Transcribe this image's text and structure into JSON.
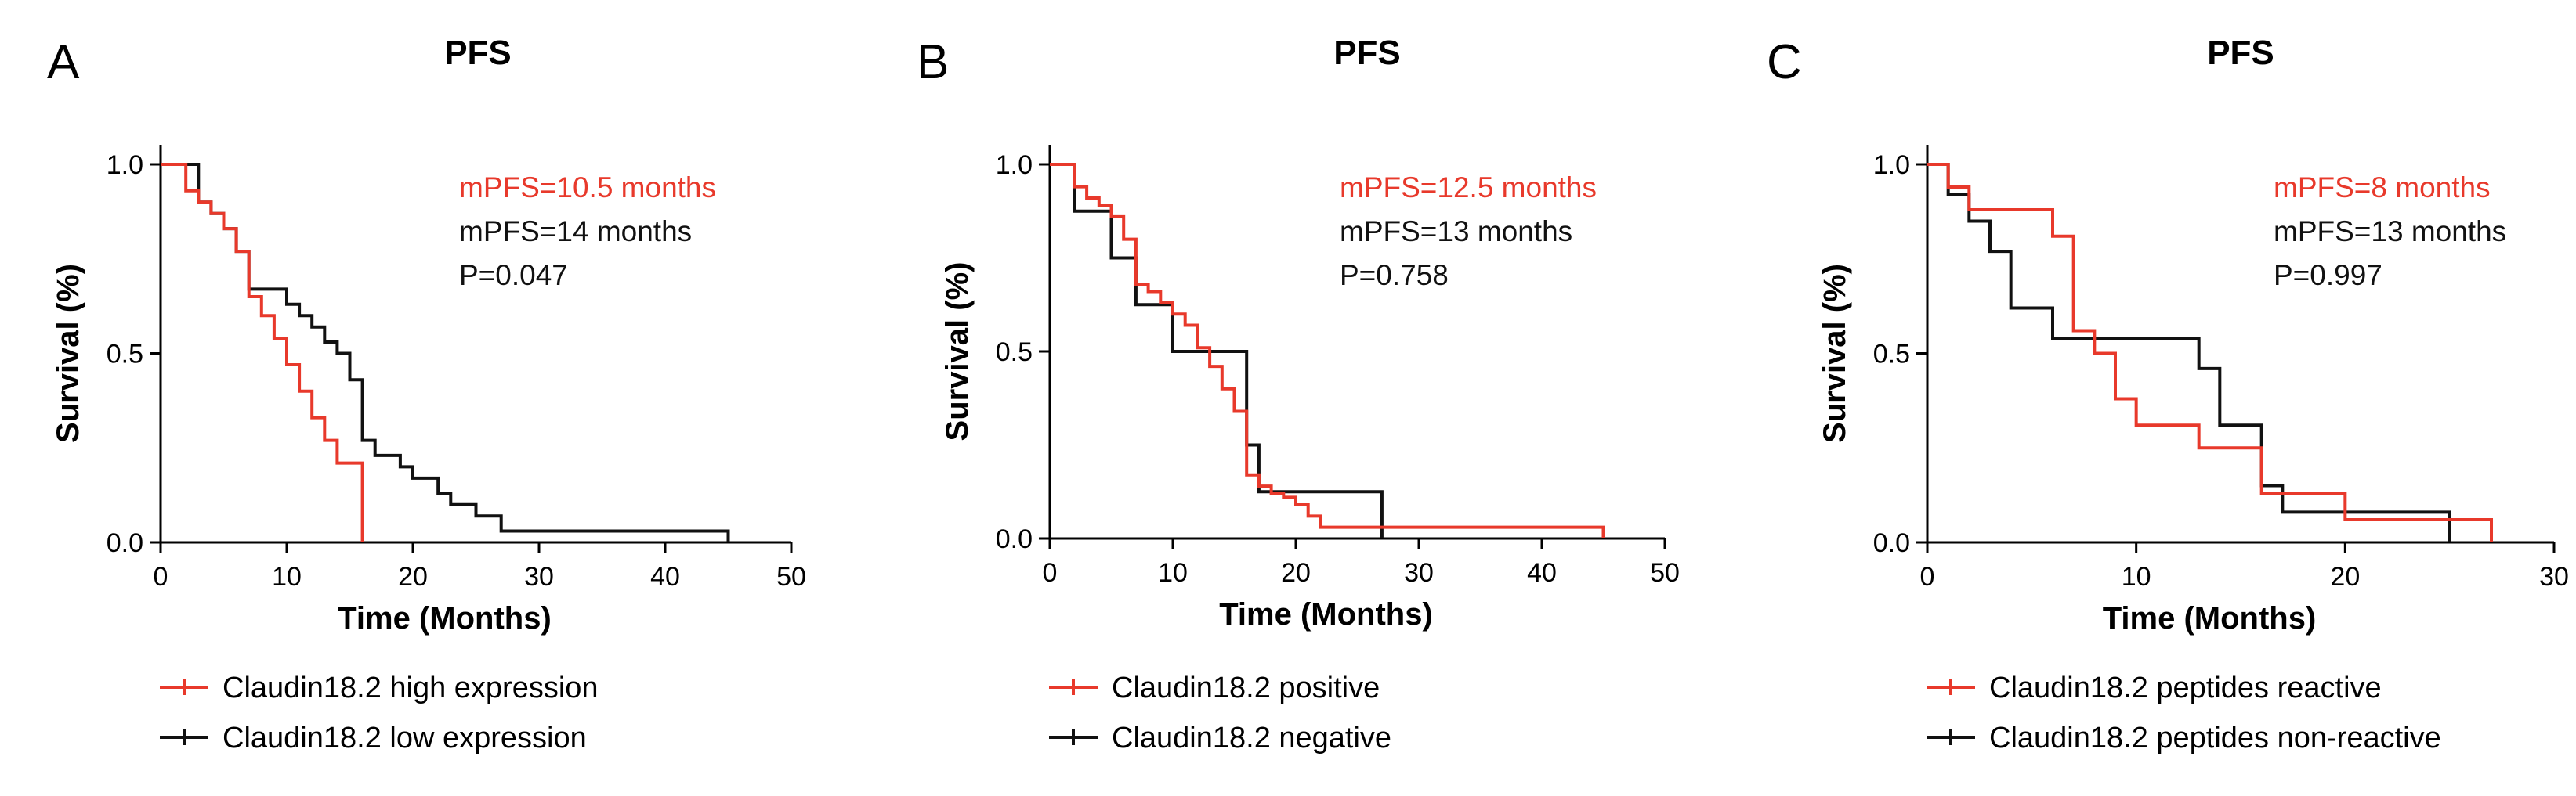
{
  "colors": {
    "red": "#e8392b",
    "black": "#111111"
  },
  "chart_data": [
    {
      "type": "line",
      "panel": "A",
      "title": "PFS",
      "xlabel": "Time (Months)",
      "ylabel": "Survival (%)",
      "xlim": [
        0,
        50
      ],
      "ylim": [
        0,
        1.0
      ],
      "xticks": [
        0,
        10,
        20,
        30,
        40,
        50
      ],
      "yticks": [
        0.0,
        0.5,
        1.0
      ],
      "annotations": [
        {
          "text": "mPFS=10.5 months",
          "color": "red"
        },
        {
          "text": "mPFS=14 months",
          "color": "black"
        },
        {
          "text": "P=0.047",
          "color": "black"
        }
      ],
      "series": [
        {
          "name": "Claudin18.2 high expression",
          "color": "red",
          "x": [
            0,
            2,
            3,
            4,
            5,
            6,
            7,
            8,
            9,
            10,
            11,
            12,
            13,
            14,
            16,
            16
          ],
          "y": [
            1.0,
            0.93,
            0.9,
            0.87,
            0.83,
            0.77,
            0.65,
            0.6,
            0.54,
            0.47,
            0.4,
            0.33,
            0.27,
            0.21,
            0.21,
            0.0
          ]
        },
        {
          "name": "Claudin18.2 low expression",
          "color": "black",
          "x": [
            0,
            3,
            4,
            5,
            6,
            7,
            10,
            11,
            12,
            13,
            14,
            15,
            16,
            17,
            19,
            20,
            22,
            23,
            25,
            27,
            45,
            45
          ],
          "y": [
            1.0,
            0.9,
            0.87,
            0.83,
            0.77,
            0.67,
            0.63,
            0.6,
            0.57,
            0.53,
            0.5,
            0.43,
            0.27,
            0.23,
            0.2,
            0.17,
            0.13,
            0.1,
            0.07,
            0.03,
            0.03,
            0.0
          ]
        }
      ]
    },
    {
      "type": "line",
      "panel": "B",
      "title": "PFS",
      "xlabel": "Time (Months)",
      "ylabel": "Survival (%)",
      "xlim": [
        0,
        50
      ],
      "ylim": [
        0,
        1.0
      ],
      "xticks": [
        0,
        10,
        20,
        30,
        40,
        50
      ],
      "yticks": [
        0.0,
        0.5,
        1.0
      ],
      "annotations": [
        {
          "text": "mPFS=12.5 months",
          "color": "red"
        },
        {
          "text": "mPFS=13 months",
          "color": "black"
        },
        {
          "text": "P=0.758",
          "color": "black"
        }
      ],
      "series": [
        {
          "name": "Claudin18.2 positive",
          "color": "red",
          "x": [
            0,
            2,
            3,
            4,
            5,
            6,
            7,
            8,
            9,
            10,
            11,
            12,
            13,
            14,
            15,
            16,
            17,
            18,
            19,
            20,
            21,
            22,
            23,
            24,
            45,
            45
          ],
          "y": [
            1.0,
            0.94,
            0.91,
            0.89,
            0.86,
            0.8,
            0.68,
            0.66,
            0.63,
            0.6,
            0.57,
            0.51,
            0.46,
            0.4,
            0.34,
            0.17,
            0.14,
            0.12,
            0.11,
            0.09,
            0.06,
            0.03,
            0.03,
            0.03,
            0.03,
            0.0
          ]
        },
        {
          "name": "Claudin18.2 negative",
          "color": "black",
          "x": [
            0,
            2,
            5,
            7,
            10,
            13,
            16,
            17,
            20,
            27,
            27
          ],
          "y": [
            1.0,
            0.875,
            0.75,
            0.625,
            0.5,
            0.5,
            0.25,
            0.125,
            0.125,
            0.125,
            0.0
          ]
        }
      ]
    },
    {
      "type": "line",
      "panel": "C",
      "title": "PFS",
      "xlabel": "Time (Months)",
      "ylabel": "Survival (%)",
      "xlim": [
        0,
        30
      ],
      "ylim": [
        0,
        1.0
      ],
      "xticks": [
        0,
        10,
        20,
        30
      ],
      "yticks": [
        0.0,
        0.5,
        1.0
      ],
      "annotations": [
        {
          "text": "mPFS=8 months",
          "color": "red"
        },
        {
          "text": "mPFS=13 months",
          "color": "black"
        },
        {
          "text": "P=0.997",
          "color": "black"
        }
      ],
      "series": [
        {
          "name": "Claudin18.2 peptides reactive",
          "color": "red",
          "x": [
            0,
            1,
            2,
            6,
            7,
            8,
            9,
            10,
            12,
            13,
            16,
            20,
            25,
            27,
            27
          ],
          "y": [
            1.0,
            0.94,
            0.88,
            0.81,
            0.56,
            0.5,
            0.38,
            0.31,
            0.31,
            0.25,
            0.13,
            0.06,
            0.06,
            0.0,
            0.0
          ]
        },
        {
          "name": "Claudin18.2 peptides non-reactive",
          "color": "black",
          "x": [
            0,
            1,
            2,
            3,
            4,
            6,
            13,
            14,
            16,
            17,
            25,
            25
          ],
          "y": [
            1.0,
            0.92,
            0.85,
            0.77,
            0.62,
            0.54,
            0.46,
            0.31,
            0.15,
            0.08,
            0.08,
            0.0
          ]
        }
      ]
    }
  ]
}
